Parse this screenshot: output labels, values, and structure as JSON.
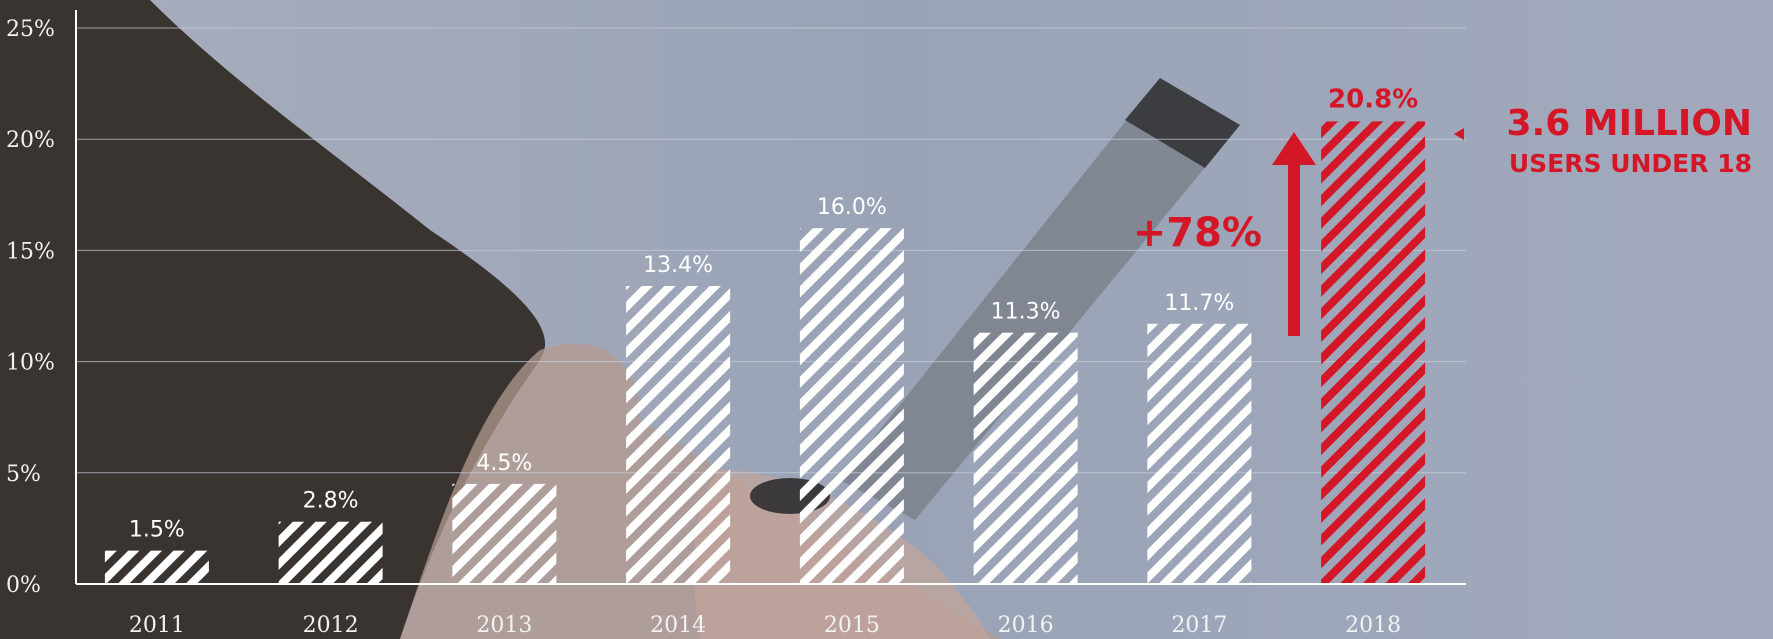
{
  "colors": {
    "bar": "#ffffff",
    "highlight": "#d41726",
    "axis": "#ffffff",
    "gridline": "#c9cfdb",
    "background": "#9aa3b6"
  },
  "annotations": {
    "change": "+78%",
    "callout_main": "3.6 MILLION",
    "callout_sub": "USERS UNDER 18",
    "arrow_icon": "arrow-up-icon",
    "pointer_icon": "triangle-left-icon"
  },
  "chart_data": {
    "type": "bar",
    "categories": [
      "2011",
      "2012",
      "2013",
      "2014",
      "2015",
      "2016",
      "2017",
      "2018"
    ],
    "values": [
      1.5,
      2.8,
      4.5,
      13.4,
      16.0,
      11.3,
      11.7,
      20.8
    ],
    "data_labels": [
      "1.5%",
      "2.8%",
      "4.5%",
      "13.4%",
      "16.0%",
      "11.3%",
      "11.7%",
      "20.8%"
    ],
    "highlight_index": 7,
    "ylim": [
      0,
      25
    ],
    "yticks": [
      0,
      5,
      10,
      15,
      20,
      25
    ],
    "ytick_labels": [
      "0%",
      "5%",
      "10%",
      "15%",
      "20%",
      "25%"
    ],
    "bar_fill": "diagonal-stripes",
    "grid": true,
    "legend": "none",
    "title": "",
    "xlabel": "",
    "ylabel": ""
  }
}
